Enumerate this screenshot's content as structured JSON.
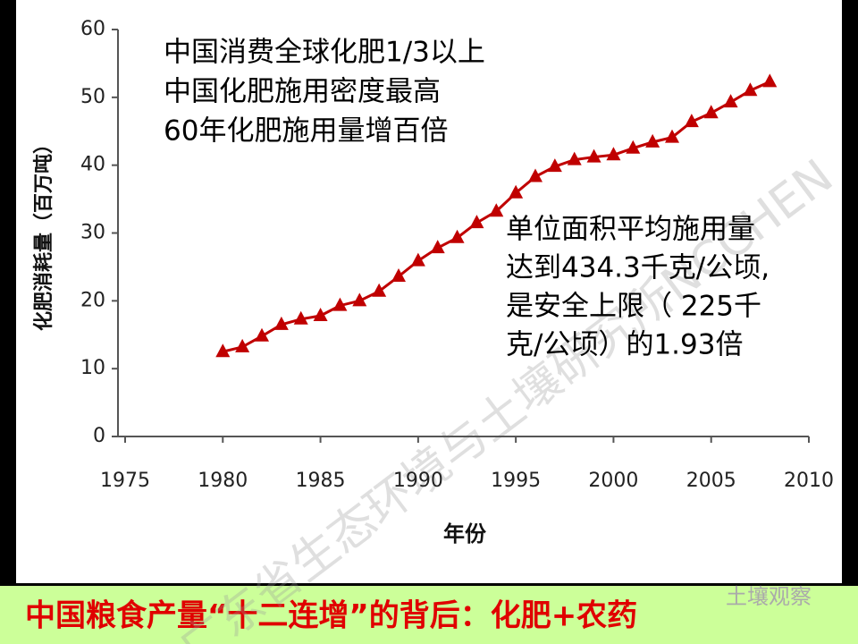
{
  "chart_data": {
    "type": "line",
    "x": [
      1980,
      1981,
      1982,
      1983,
      1984,
      1985,
      1986,
      1987,
      1988,
      1989,
      1990,
      1991,
      1992,
      1993,
      1994,
      1995,
      1996,
      1997,
      1998,
      1999,
      2000,
      2001,
      2002,
      2003,
      2004,
      2005,
      2006,
      2007,
      2008
    ],
    "values": [
      12.5,
      13.2,
      14.8,
      16.5,
      17.3,
      17.8,
      19.3,
      20.0,
      21.4,
      23.6,
      25.9,
      27.8,
      29.3,
      31.5,
      33.2,
      35.9,
      38.3,
      39.8,
      40.8,
      41.2,
      41.5,
      42.5,
      43.4,
      44.1,
      46.4,
      47.7,
      49.3,
      51.0,
      52.3
    ],
    "color": "#c00000",
    "xlabel": "年份",
    "ylabel": "化肥消耗量（百万吨）",
    "xlim": [
      1975,
      2010
    ],
    "xticks": [
      1975,
      1980,
      1985,
      1990,
      1995,
      2000,
      2005,
      2010
    ],
    "ylim": [
      0,
      60
    ],
    "yticks": [
      0,
      10,
      20,
      30,
      40,
      50,
      60
    ],
    "grid": false,
    "annotations": [
      "中国消费全球化肥1/3以上",
      "中国化肥施用密度最高",
      "60年化肥施用量增百倍"
    ],
    "note": [
      "单位面积平均施用量",
      "达到434.3千克/公顷,",
      "是安全上限（ 225千",
      "克/公顷）的1.93倍"
    ]
  },
  "banner": "中国粮食产量“十二连增”的背后：化肥+农药",
  "watermark": "广东省生态环境与土壤研究所NCCHEN",
  "logo": "土壤观察"
}
